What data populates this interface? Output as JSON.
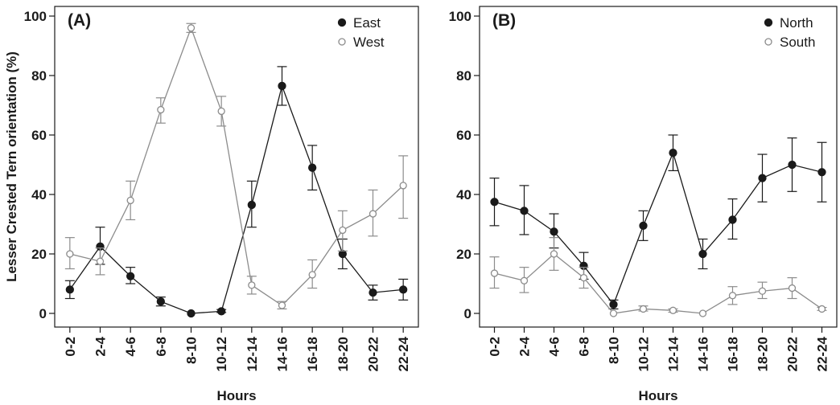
{
  "chart_data": [
    {
      "type": "line",
      "panel_label": "(A)",
      "categories": [
        "0-2",
        "2-4",
        "4-6",
        "6-8",
        "8-10",
        "10-12",
        "12-14",
        "14-16",
        "16-18",
        "18-20",
        "20-22",
        "22-24"
      ],
      "xlabel": "Hours",
      "ylabel": "Lesser Crested Tern orientation (%)",
      "ylim": [
        0,
        100
      ],
      "yticks": [
        0,
        20,
        40,
        60,
        80,
        100
      ],
      "grid": false,
      "legend_position": "top-right",
      "series": [
        {
          "name": "East",
          "marker": "filled-circle",
          "color": "#1a1a1a",
          "values": [
            8,
            22.5,
            12.5,
            4,
            0,
            0.7,
            36.5,
            76.5,
            49,
            20,
            7,
            8
          ],
          "error_low": [
            5,
            16.5,
            10,
            2.5,
            0,
            0.3,
            29,
            70,
            41.5,
            15,
            4.5,
            4.5
          ],
          "error_high": [
            11,
            29,
            15.5,
            5.5,
            0,
            1.3,
            44.5,
            83,
            56.5,
            25,
            9.5,
            11.5
          ]
        },
        {
          "name": "West",
          "marker": "open-circle",
          "color": "#8c8c8c",
          "values": [
            20,
            17.5,
            38,
            68.5,
            96,
            68,
            9.5,
            2.7,
            13,
            28,
            33.5,
            43
          ],
          "error_low": [
            15,
            13,
            31.5,
            64,
            94.5,
            63,
            6.5,
            1.5,
            8.5,
            21,
            26,
            32
          ],
          "error_high": [
            25.5,
            22,
            44.5,
            72.5,
            97.5,
            73,
            12.5,
            4,
            18,
            34.5,
            41.5,
            53
          ]
        }
      ]
    },
    {
      "type": "line",
      "panel_label": "(B)",
      "categories": [
        "0-2",
        "2-4",
        "4-6",
        "6-8",
        "8-10",
        "10-12",
        "12-14",
        "14-16",
        "16-18",
        "18-20",
        "20-22",
        "22-24"
      ],
      "xlabel": "Hours",
      "ylabel": "",
      "ylim": [
        0,
        100
      ],
      "yticks": [
        0,
        20,
        40,
        60,
        80,
        100
      ],
      "grid": false,
      "legend_position": "top-right",
      "series": [
        {
          "name": "North",
          "marker": "filled-circle",
          "color": "#1a1a1a",
          "values": [
            37.5,
            34.5,
            27.5,
            16,
            3,
            29.5,
            54,
            20,
            31.5,
            45.5,
            50,
            47.5
          ],
          "error_low": [
            29.5,
            26.5,
            22,
            11.5,
            1.5,
            24.5,
            48,
            15,
            25,
            37.5,
            41,
            37.5
          ],
          "error_high": [
            45.5,
            43,
            33.5,
            20.5,
            4.5,
            34.5,
            60,
            25,
            38.5,
            53.5,
            59,
            57.5
          ]
        },
        {
          "name": "South",
          "marker": "open-circle",
          "color": "#8c8c8c",
          "values": [
            13.5,
            11,
            20,
            12,
            0,
            1.5,
            1,
            0,
            6,
            7.5,
            8.5,
            1.5
          ],
          "error_low": [
            8.5,
            7,
            14.5,
            8.5,
            0,
            0.8,
            0.4,
            0,
            3,
            5,
            5,
            1
          ],
          "error_high": [
            19,
            15.5,
            25.5,
            15.5,
            0,
            2.5,
            1.5,
            0,
            9,
            10.5,
            12,
            2
          ]
        }
      ]
    }
  ]
}
